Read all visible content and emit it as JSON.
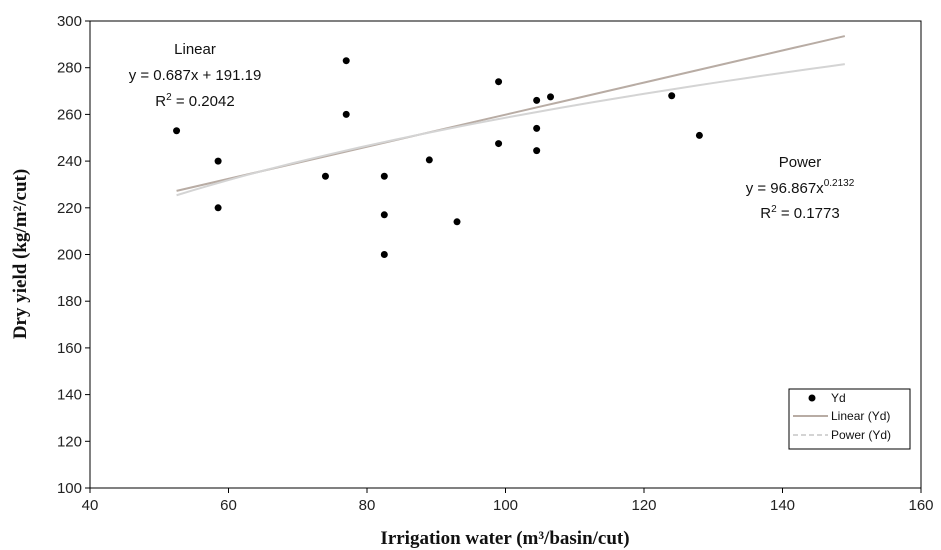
{
  "chart_data": {
    "type": "scatter",
    "title": "",
    "xlabel": "Irrigation water (m³/basin/cut)",
    "ylabel": "Dry yield (kg/m²/cut)",
    "xlim": [
      40,
      160
    ],
    "ylim": [
      100,
      300
    ],
    "x_ticks": [
      "40",
      "60",
      "80",
      "100",
      "120",
      "140",
      "160"
    ],
    "y_ticks": [
      "100",
      "120",
      "140",
      "160",
      "180",
      "200",
      "220",
      "240",
      "260",
      "280",
      "300"
    ],
    "grid": false,
    "series": [
      {
        "name": "Yd",
        "color": "#000000",
        "points": [
          {
            "x": 52.5,
            "y": 253
          },
          {
            "x": 58.5,
            "y": 240
          },
          {
            "x": 58.5,
            "y": 220
          },
          {
            "x": 74,
            "y": 233.5
          },
          {
            "x": 77,
            "y": 283
          },
          {
            "x": 77,
            "y": 260
          },
          {
            "x": 82.5,
            "y": 233.5
          },
          {
            "x": 82.5,
            "y": 217
          },
          {
            "x": 82.5,
            "y": 200
          },
          {
            "x": 89,
            "y": 240.5
          },
          {
            "x": 93,
            "y": 214
          },
          {
            "x": 99,
            "y": 274
          },
          {
            "x": 99,
            "y": 247.5
          },
          {
            "x": 104.5,
            "y": 266
          },
          {
            "x": 104.5,
            "y": 254
          },
          {
            "x": 104.5,
            "y": 244.5
          },
          {
            "x": 106.5,
            "y": 267.5
          },
          {
            "x": 124,
            "y": 268
          },
          {
            "x": 128,
            "y": 251
          }
        ]
      }
    ],
    "trendlines": [
      {
        "name": "Linear (Yd)",
        "type": "linear",
        "slope": 0.687,
        "intercept": 191.19,
        "x_range": [
          52.5,
          149
        ],
        "color": "#b8aca4"
      },
      {
        "name": "Power (Yd)",
        "type": "power",
        "coefficient": 96.867,
        "exponent": 0.2132,
        "x_range": [
          52.5,
          149
        ],
        "color": "#d4d4d4"
      }
    ],
    "annotations": {
      "linear": {
        "title": "Linear",
        "equation": "y = 0.687x + 191.19",
        "r2_label": "R",
        "r2_sup": "2",
        "r2_value": " = 0.2042"
      },
      "power": {
        "title": "Power",
        "equation_prefix": "y = 96.867x",
        "equation_sup": "0.2132",
        "r2_label": "R",
        "r2_sup": "2",
        "r2_value": " = 0.1773"
      }
    },
    "legend": {
      "position": "bottom-right",
      "entries": [
        "Yd",
        "Linear (Yd)",
        "Power (Yd)"
      ]
    }
  }
}
